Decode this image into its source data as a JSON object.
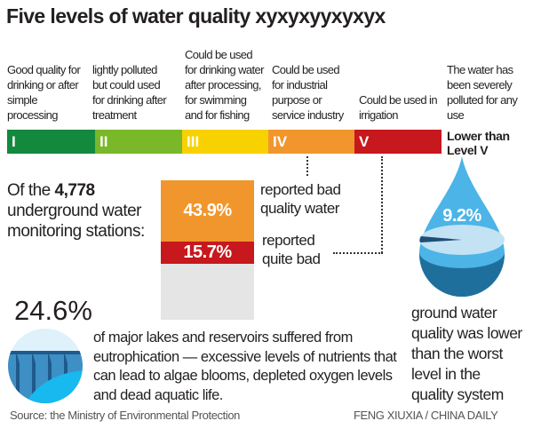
{
  "title": "Five levels of water quality xyxyxyyxyxyx",
  "levels": [
    {
      "numeral": "I",
      "description": "Good quality for drinking or after simple processing",
      "color": "#12893d"
    },
    {
      "numeral": "II",
      "description": "lightly polluted but could used for drinking after treatment",
      "color": "#79b829"
    },
    {
      "numeral": "III",
      "description": "Could be used for drinking water after processing, for swimming and for fishing",
      "color": "#f7d200"
    },
    {
      "numeral": "IV",
      "description": "Could be used for industrial purpose or service industry",
      "color": "#f1962d"
    },
    {
      "numeral": "V",
      "description": "Could be used in irrigation",
      "color": "#c6181d"
    }
  ],
  "below_v": {
    "description": "The water has been severely polluted for any use",
    "label": "Lower than Level V"
  },
  "stations": {
    "prefix": "Of the ",
    "count": "4,778",
    "suffix": " underground water monitoring stations:"
  },
  "bad": {
    "value": "43.9%",
    "label": "reported bad quality water"
  },
  "quite_bad": {
    "value": "15.7%",
    "label": "reported quite bad"
  },
  "drop": {
    "value": "9.2%",
    "label": "ground water quality was lower than the worst level in the quality system"
  },
  "lakes": {
    "value": "24.6%",
    "text": "of major lakes and reservoirs suffered from eutrophication — excessive levels of nutrients that can lead to algae blooms, depleted oxygen levels and dead aquatic life."
  },
  "source": "Source: the Ministry of Environmental Protection",
  "credit": "FENG XIUXIA / CHINA DAILY"
}
